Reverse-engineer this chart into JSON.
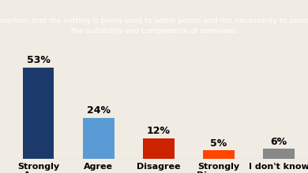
{
  "title_line1": "Assertion that the vetting is being used to settle points and not necessarily to assess",
  "title_line2": "the suitability and competence of nominees",
  "categories": [
    "Strongly\nAgree",
    "Agree",
    "Disagree",
    "Strongly\nDisagree",
    "I don't know"
  ],
  "values": [
    53,
    24,
    12,
    5,
    6
  ],
  "labels": [
    "53%",
    "24%",
    "12%",
    "5%",
    "6%"
  ],
  "bar_colors": [
    "#1b3a6b",
    "#5b9bd5",
    "#cc2200",
    "#ff4400",
    "#888888"
  ],
  "chart_bg_color": "#f0ece4",
  "title_bg_color": "#111111",
  "title_text_color": "#ffffff",
  "label_color": "#000000",
  "xlabel_color": "#000000",
  "ylim": [
    0,
    62
  ],
  "title_fontsize": 6.8,
  "label_fontsize": 9,
  "xtick_fontsize": 8,
  "figsize": [
    3.9,
    2.2
  ],
  "dpi": 100
}
